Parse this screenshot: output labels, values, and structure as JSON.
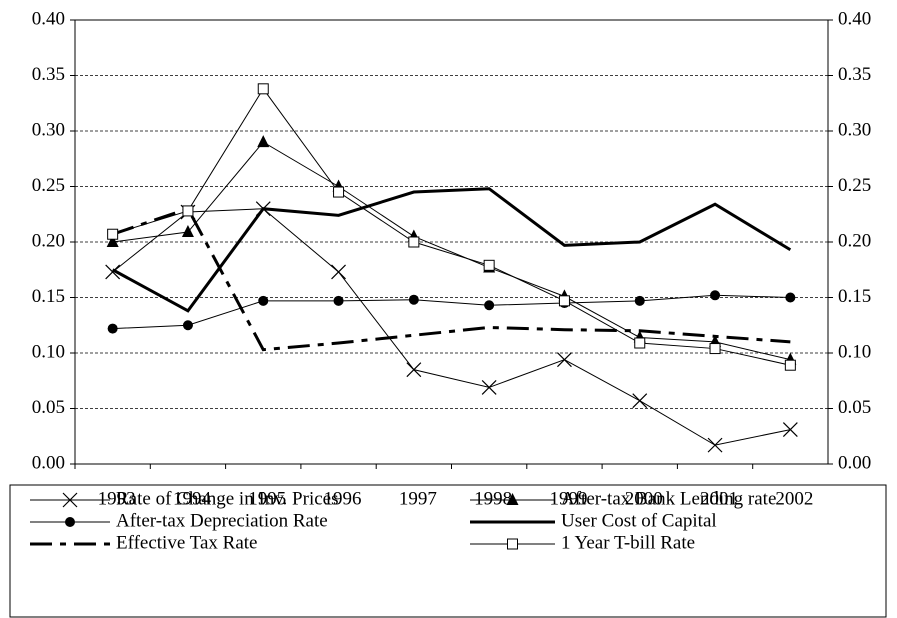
{
  "chart_data": {
    "type": "line",
    "categories": [
      "1993",
      "1994",
      "1995",
      "1996",
      "1997",
      "1998",
      "1999",
      "2000",
      "2001",
      "2002"
    ],
    "series": [
      {
        "name": "Rate of Change in Inv. Prices",
        "color": "#000000",
        "marker": "x",
        "line_width": 1,
        "dash": "solid",
        "values": [
          0.173,
          0.227,
          0.23,
          0.173,
          0.085,
          0.069,
          0.094,
          0.057,
          0.017,
          0.031
        ]
      },
      {
        "name": "After-tax Bank Lending rate",
        "color": "#000000",
        "marker": "triangle",
        "line_width": 1,
        "dash": "solid",
        "values": [
          0.2,
          0.209,
          0.29,
          0.25,
          0.205,
          0.177,
          0.151,
          0.114,
          0.11,
          0.094
        ]
      },
      {
        "name": "After-tax Depreciation Rate",
        "color": "#000000",
        "marker": "circle",
        "line_width": 1,
        "dash": "solid",
        "values": [
          0.122,
          0.125,
          0.147,
          0.147,
          0.148,
          0.143,
          0.145,
          0.147,
          0.152,
          0.15
        ]
      },
      {
        "name": "User Cost of Capital",
        "color": "#000000",
        "marker": "none",
        "line_width": 3,
        "dash": "solid",
        "values": [
          0.175,
          0.138,
          0.23,
          0.224,
          0.245,
          0.248,
          0.197,
          0.2,
          0.234,
          0.193
        ]
      },
      {
        "name": "Effective Tax Rate",
        "color": "#000000",
        "marker": "none",
        "line_width": 3,
        "dash": "dashdot",
        "values": [
          0.207,
          0.23,
          0.103,
          0.109,
          0.116,
          0.123,
          0.121,
          0.12,
          0.115,
          0.11
        ]
      },
      {
        "name": "1 Year T-bill Rate",
        "color": "#000000",
        "marker": "square",
        "line_width": 1,
        "dash": "solid",
        "values": [
          0.207,
          0.228,
          0.338,
          0.245,
          0.2,
          0.179,
          0.147,
          0.109,
          0.104,
          0.089
        ]
      }
    ],
    "ylim": [
      0,
      0.4
    ],
    "yticks": [
      {
        "value": 0,
        "label": "0.00"
      },
      {
        "value": 0.05,
        "label": "0.05"
      },
      {
        "value": 0.1,
        "label": "0.10"
      },
      {
        "value": 0.15,
        "label": "0.15"
      },
      {
        "value": 0.2,
        "label": "0.20"
      },
      {
        "value": 0.25,
        "label": "0.25"
      },
      {
        "value": 0.3,
        "label": "0.30"
      },
      {
        "value": 0.35,
        "label": "0.35"
      },
      {
        "value": 0.4,
        "label": "0.40"
      }
    ],
    "y2lim": [
      0,
      0.4
    ],
    "y2ticks": [
      {
        "value": 0,
        "label": "0.00"
      },
      {
        "value": 0.05,
        "label": "0.05"
      },
      {
        "value": 0.1,
        "label": "0.10"
      },
      {
        "value": 0.15,
        "label": "0.15"
      },
      {
        "value": 0.2,
        "label": "0.20"
      },
      {
        "value": 0.25,
        "label": "0.25"
      },
      {
        "value": 0.3,
        "label": "0.30"
      },
      {
        "value": 0.35,
        "label": "0.35"
      },
      {
        "value": 0.4,
        "label": "0.40"
      }
    ],
    "grid": true
  }
}
